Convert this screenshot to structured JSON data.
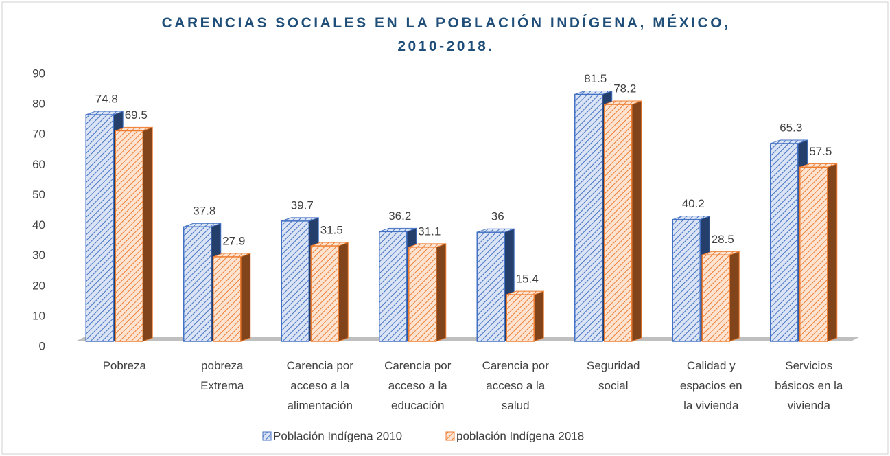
{
  "chart_data": {
    "type": "bar",
    "title": "CARENCIAS SOCIALES EN LA POBLACIÓN INDÍGENA, MÉXICO, 2010-2018.",
    "categories": [
      "Pobreza",
      "pobreza Extrema",
      "Carencia por acceso a la alimentación",
      "Carencia por acceso a la educación",
      "Carencia por acceso a la salud",
      "Seguridad social",
      "Calidad y espacios en la vivienda",
      "Servicios básicos en la vivienda"
    ],
    "series": [
      {
        "name": "Población Indígena 2010",
        "color": "#4472c4",
        "values": [
          74.8,
          37.8,
          39.7,
          36.2,
          36,
          81.5,
          40.2,
          65.3
        ]
      },
      {
        "name": "población Indígena 2018",
        "color": "#ed7d31",
        "values": [
          69.5,
          27.9,
          31.5,
          31.1,
          15.4,
          78.2,
          28.5,
          57.5
        ]
      }
    ],
    "ylim": [
      0,
      90
    ],
    "yticks": [
      0,
      10,
      20,
      30,
      40,
      50,
      60,
      70,
      80,
      90
    ],
    "grid": false,
    "legend": "bottom"
  }
}
